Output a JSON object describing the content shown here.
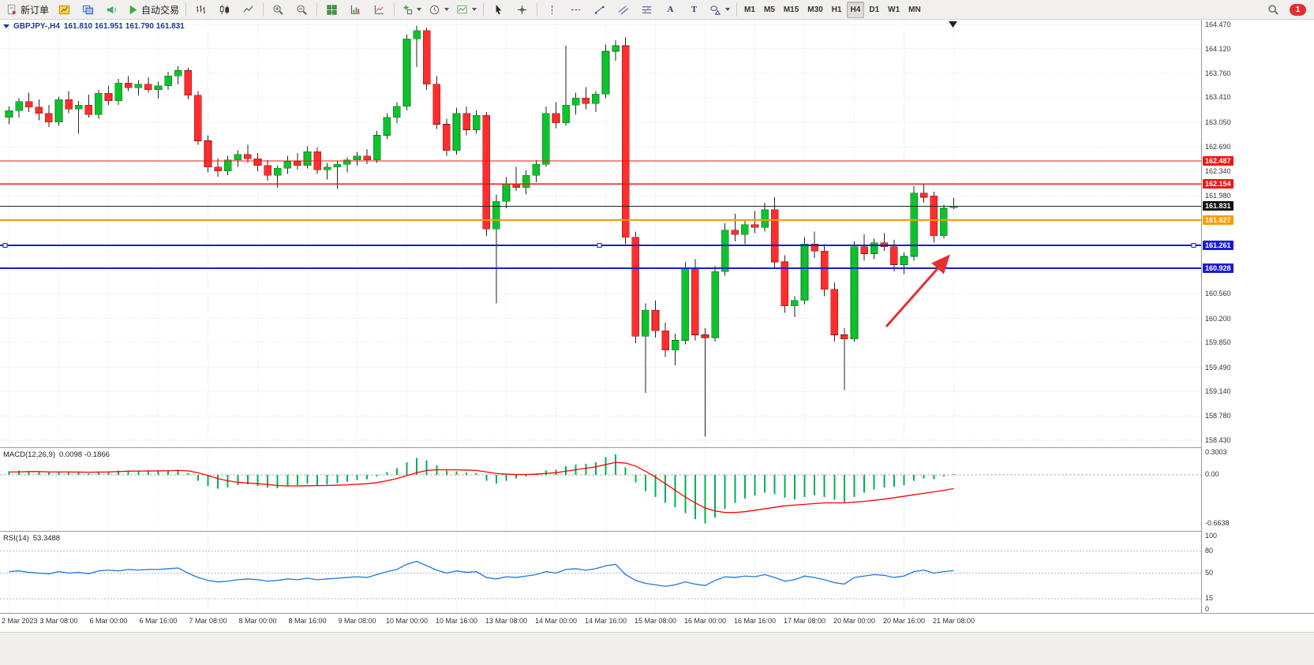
{
  "toolbar": {
    "notification_badge": "1",
    "active_timeframe": "H4",
    "timeframes": [
      "M1",
      "M5",
      "M15",
      "M30",
      "H1",
      "H4",
      "D1",
      "W1",
      "MN"
    ],
    "groups": [
      {
        "items": [
          {
            "name": "new-order",
            "icon": "new-order",
            "label": "新订单"
          },
          {
            "name": "charts",
            "icon": "charts"
          },
          {
            "name": "profiles",
            "icon": "profiles"
          },
          {
            "name": "alerts",
            "icon": "alerts"
          },
          {
            "name": "auto-trading",
            "icon": "autotrade",
            "label": "自动交易"
          }
        ]
      },
      {
        "items": [
          {
            "name": "bar-chart",
            "icon": "bars"
          },
          {
            "name": "candlestick-chart",
            "icon": "candles"
          },
          {
            "name": "line-chart",
            "icon": "linechart"
          }
        ]
      },
      {
        "items": [
          {
            "name": "zoom-in",
            "icon": "zoom-in"
          },
          {
            "name": "zoom-out",
            "icon": "zoom-out"
          }
        ]
      },
      {
        "items": [
          {
            "name": "tile-windows",
            "icon": "tile"
          },
          {
            "name": "arrange-charts",
            "icon": "chartaxes"
          },
          {
            "name": "auto-scroll",
            "icon": "chartaxes2"
          }
        ]
      },
      {
        "items": [
          {
            "name": "new-chart",
            "icon": "pluschart",
            "dropdown": true
          },
          {
            "name": "period-selector",
            "icon": "clock",
            "dropdown": true
          },
          {
            "name": "template-selector",
            "icon": "template",
            "dropdown": true
          }
        ]
      },
      {
        "items": [
          {
            "name": "cursor-tool",
            "icon": "cursor"
          },
          {
            "name": "crosshair-tool",
            "icon": "crosshair"
          }
        ]
      },
      {
        "items": [
          {
            "name": "vertical-line-tool",
            "icon": "vline"
          },
          {
            "name": "horizontal-line-tool",
            "icon": "hline"
          },
          {
            "name": "trendline-tool",
            "icon": "trend"
          },
          {
            "name": "channel-tool",
            "icon": "channel"
          },
          {
            "name": "fibonacci-tool",
            "icon": "fibo"
          },
          {
            "name": "text-tool",
            "icon": "glyph",
            "glyph": "A"
          },
          {
            "name": "label-tool",
            "icon": "glyph",
            "glyph": "T"
          },
          {
            "name": "shapes-tool",
            "icon": "shapes",
            "dropdown": true
          }
        ]
      }
    ]
  },
  "chart": {
    "symbol_title": "GBPJPY-,H4",
    "ohlc_text": "161.810 161.951 161.790 161.831"
  },
  "indicators": {
    "macd": {
      "label": "MACD(12,26,9)",
      "values": "0.0098 -0.1866",
      "axis_labels": [
        "0.3003",
        "0.00",
        "-0.6638"
      ]
    },
    "rsi": {
      "label": "RSI(14)",
      "values": "53.3488",
      "axis_labels": [
        "100",
        "80",
        "50",
        "15",
        "0"
      ],
      "levels": [
        80,
        50,
        15
      ]
    }
  },
  "chart_data": [
    {
      "type": "candlestick",
      "title": "GBPJPY- H4",
      "y_range": [
        158.43,
        164.47
      ],
      "up_color": "#0ec22e",
      "down_color": "#ff2e2e",
      "y_ticks": [
        "164.470",
        "164.120",
        "163.760",
        "163.410",
        "163.050",
        "162.690",
        "162.340",
        "161.980",
        "160.560",
        "160.200",
        "159.850",
        "159.490",
        "159.140",
        "158.780",
        "158.430"
      ],
      "x_labels": [
        "2 Mar 2023",
        "3 Mar 08:00",
        "6 Mar 00:00",
        "6 Mar 16:00",
        "7 Mar 08:00",
        "8 Mar 00:00",
        "8 Mar 16:00",
        "9 Mar 08:00",
        "10 Mar 00:00",
        "10 Mar 16:00",
        "13 Mar 08:00",
        "14 Mar 00:00",
        "14 Mar 16:00",
        "15 Mar 08:00",
        "16 Mar 00:00",
        "16 Mar 16:00",
        "17 Mar 08:00",
        "20 Mar 00:00",
        "20 Mar 16:00",
        "21 Mar 08:00"
      ],
      "levels": [
        {
          "price": 162.487,
          "label": "162.487",
          "color": "#f21515",
          "width": 1.4,
          "selected": false
        },
        {
          "price": 162.154,
          "label": "162.154",
          "color": "#f21515",
          "width": 1.4,
          "selected": false
        },
        {
          "price": 161.627,
          "label": "161.627",
          "color": "#ff9a00",
          "width": 2,
          "selected": false
        },
        {
          "price": 161.261,
          "label": "161.261",
          "color": "#1b1bd6",
          "width": 2,
          "selected": true
        },
        {
          "price": 160.928,
          "label": "160.928",
          "color": "#1b1bd6",
          "width": 2,
          "selected": false
        }
      ],
      "current_price": 161.831,
      "current_price_label": "161.831",
      "candles": [
        [
          163.12,
          163.28,
          163.02,
          163.22
        ],
        [
          163.22,
          163.4,
          163.12,
          163.35
        ],
        [
          163.35,
          163.48,
          163.2,
          163.27
        ],
        [
          163.27,
          163.38,
          163.08,
          163.18
        ],
        [
          163.18,
          163.3,
          162.98,
          163.05
        ],
        [
          163.05,
          163.42,
          163.0,
          163.38
        ],
        [
          163.38,
          163.5,
          163.18,
          163.24
        ],
        [
          163.24,
          163.36,
          162.88,
          163.3
        ],
        [
          163.3,
          163.45,
          163.12,
          163.16
        ],
        [
          163.16,
          163.52,
          163.1,
          163.47
        ],
        [
          163.47,
          163.58,
          163.3,
          163.36
        ],
        [
          163.36,
          163.68,
          163.3,
          163.62
        ],
        [
          163.62,
          163.72,
          163.5,
          163.55
        ],
        [
          163.55,
          163.66,
          163.44,
          163.6
        ],
        [
          163.6,
          163.7,
          163.48,
          163.52
        ],
        [
          163.52,
          163.64,
          163.4,
          163.58
        ],
        [
          163.58,
          163.78,
          163.52,
          163.72
        ],
        [
          163.72,
          163.86,
          163.6,
          163.8
        ],
        [
          163.8,
          163.84,
          163.38,
          163.44
        ],
        [
          163.44,
          163.5,
          162.72,
          162.78
        ],
        [
          162.78,
          162.86,
          162.32,
          162.4
        ],
        [
          162.4,
          162.52,
          162.26,
          162.34
        ],
        [
          162.34,
          162.56,
          162.28,
          162.5
        ],
        [
          162.5,
          162.64,
          162.4,
          162.58
        ],
        [
          162.58,
          162.72,
          162.46,
          162.52
        ],
        [
          162.52,
          162.6,
          162.34,
          162.42
        ],
        [
          162.42,
          162.5,
          162.2,
          162.28
        ],
        [
          162.28,
          162.42,
          162.1,
          162.38
        ],
        [
          162.38,
          162.56,
          162.3,
          162.48
        ],
        [
          162.48,
          162.6,
          162.36,
          162.42
        ],
        [
          162.42,
          162.7,
          162.38,
          162.62
        ],
        [
          162.62,
          162.68,
          162.3,
          162.36
        ],
        [
          162.36,
          162.46,
          162.22,
          162.4
        ],
        [
          162.4,
          162.48,
          162.08,
          162.44
        ],
        [
          162.44,
          162.54,
          162.32,
          162.5
        ],
        [
          162.5,
          162.62,
          162.42,
          162.56
        ],
        [
          162.56,
          162.66,
          162.44,
          162.5
        ],
        [
          162.5,
          162.92,
          162.46,
          162.86
        ],
        [
          162.86,
          163.18,
          162.8,
          163.12
        ],
        [
          163.12,
          163.34,
          163.04,
          163.28
        ],
        [
          163.28,
          164.32,
          163.22,
          164.26
        ],
        [
          164.26,
          164.45,
          163.85,
          164.38
        ],
        [
          164.38,
          164.42,
          163.52,
          163.6
        ],
        [
          163.6,
          163.72,
          162.95,
          163.02
        ],
        [
          163.02,
          163.1,
          162.56,
          162.64
        ],
        [
          162.64,
          163.26,
          162.58,
          163.18
        ],
        [
          163.18,
          163.28,
          162.86,
          162.94
        ],
        [
          162.94,
          163.22,
          162.88,
          163.15
        ],
        [
          163.15,
          163.2,
          161.4,
          161.5
        ],
        [
          161.5,
          162.0,
          160.42,
          161.9
        ],
        [
          161.9,
          162.25,
          161.8,
          162.15
        ],
        [
          162.15,
          162.4,
          162.05,
          162.1
        ],
        [
          162.1,
          162.35,
          162.0,
          162.28
        ],
        [
          162.28,
          162.5,
          162.18,
          162.44
        ],
        [
          162.44,
          163.28,
          162.4,
          163.18
        ],
        [
          163.18,
          163.34,
          162.96,
          163.04
        ],
        [
          163.04,
          164.16,
          163.0,
          163.3
        ],
        [
          163.3,
          163.48,
          163.16,
          163.4
        ],
        [
          163.4,
          163.56,
          163.24,
          163.32
        ],
        [
          163.32,
          163.5,
          163.2,
          163.46
        ],
        [
          163.46,
          164.18,
          163.4,
          164.08
        ],
        [
          164.08,
          164.24,
          163.94,
          164.16
        ],
        [
          164.16,
          164.28,
          161.28,
          161.38
        ],
        [
          161.38,
          161.46,
          159.84,
          159.94
        ],
        [
          159.94,
          160.42,
          159.12,
          160.32
        ],
        [
          160.32,
          160.46,
          159.92,
          160.02
        ],
        [
          160.02,
          160.14,
          159.64,
          159.74
        ],
        [
          159.74,
          159.98,
          159.52,
          159.88
        ],
        [
          159.88,
          161.02,
          159.82,
          160.92
        ],
        [
          160.92,
          161.06,
          159.88,
          159.96
        ],
        [
          159.96,
          160.06,
          158.48,
          159.92
        ],
        [
          159.92,
          160.96,
          159.86,
          160.88
        ],
        [
          160.88,
          161.58,
          160.82,
          161.48
        ],
        [
          161.48,
          161.72,
          161.32,
          161.42
        ],
        [
          161.42,
          161.62,
          161.28,
          161.56
        ],
        [
          161.56,
          161.76,
          161.44,
          161.52
        ],
        [
          161.52,
          161.88,
          161.46,
          161.78
        ],
        [
          161.78,
          161.96,
          160.92,
          161.02
        ],
        [
          161.02,
          161.12,
          160.28,
          160.38
        ],
        [
          160.38,
          160.52,
          160.22,
          160.46
        ],
        [
          160.46,
          161.38,
          160.4,
          161.28
        ],
        [
          161.28,
          161.46,
          161.08,
          161.18
        ],
        [
          161.18,
          161.28,
          160.52,
          160.62
        ],
        [
          160.62,
          160.72,
          159.86,
          159.96
        ],
        [
          159.96,
          160.06,
          159.16,
          159.9
        ],
        [
          159.9,
          161.32,
          159.86,
          161.24
        ],
        [
          161.24,
          161.42,
          161.04,
          161.14
        ],
        [
          161.14,
          161.36,
          161.06,
          161.3
        ],
        [
          161.3,
          161.44,
          161.18,
          161.24
        ],
        [
          161.24,
          161.34,
          160.88,
          160.98
        ],
        [
          160.98,
          161.16,
          160.84,
          161.1
        ],
        [
          161.1,
          162.12,
          161.04,
          162.02
        ],
        [
          162.02,
          162.16,
          161.88,
          161.96
        ],
        [
          161.98,
          162.04,
          161.3,
          161.4
        ],
        [
          161.4,
          161.85,
          161.36,
          161.8
        ],
        [
          161.81,
          161.951,
          161.79,
          161.831
        ]
      ]
    },
    {
      "type": "bar",
      "name": "MACD(12,26,9)",
      "y_range": [
        -0.6638,
        0.3003
      ],
      "histogram_color": "#00b050",
      "signal_color": "#ff0000",
      "current_values": [
        0.0098,
        -0.1866
      ],
      "histogram": [
        0.05,
        0.06,
        0.05,
        0.04,
        0.03,
        0.04,
        0.03,
        0.03,
        0.02,
        0.04,
        0.05,
        0.06,
        0.06,
        0.05,
        0.05,
        0.05,
        0.06,
        0.07,
        0.02,
        -0.08,
        -0.15,
        -0.19,
        -0.17,
        -0.14,
        -0.13,
        -0.15,
        -0.17,
        -0.18,
        -0.15,
        -0.14,
        -0.12,
        -0.14,
        -0.13,
        -0.11,
        -0.09,
        -0.07,
        -0.06,
        -0.02,
        0.04,
        0.09,
        0.17,
        0.23,
        0.2,
        0.13,
        0.06,
        0.05,
        0.03,
        0.02,
        -0.08,
        -0.12,
        -0.08,
        -0.05,
        -0.02,
        0.02,
        0.06,
        0.07,
        0.12,
        0.14,
        0.15,
        0.17,
        0.24,
        0.28,
        0.1,
        -0.1,
        -0.22,
        -0.3,
        -0.38,
        -0.44,
        -0.52,
        -0.6,
        -0.66,
        -0.58,
        -0.46,
        -0.38,
        -0.32,
        -0.28,
        -0.24,
        -0.26,
        -0.31,
        -0.33,
        -0.3,
        -0.28,
        -0.3,
        -0.34,
        -0.37,
        -0.3,
        -0.24,
        -0.2,
        -0.17,
        -0.16,
        -0.14,
        -0.08,
        -0.05,
        -0.06,
        -0.02,
        0.0098
      ],
      "signal_line": [
        0.04,
        0.04,
        0.045,
        0.045,
        0.04,
        0.04,
        0.04,
        0.038,
        0.036,
        0.038,
        0.04,
        0.045,
        0.05,
        0.052,
        0.053,
        0.054,
        0.056,
        0.06,
        0.055,
        0.03,
        -0.01,
        -0.05,
        -0.08,
        -0.1,
        -0.11,
        -0.12,
        -0.13,
        -0.145,
        -0.15,
        -0.15,
        -0.148,
        -0.146,
        -0.144,
        -0.14,
        -0.135,
        -0.128,
        -0.12,
        -0.105,
        -0.08,
        -0.05,
        -0.01,
        0.03,
        0.06,
        0.07,
        0.07,
        0.068,
        0.065,
        0.06,
        0.04,
        0.02,
        0.01,
        0.005,
        0.005,
        0.01,
        0.02,
        0.03,
        0.05,
        0.07,
        0.09,
        0.11,
        0.14,
        0.17,
        0.16,
        0.12,
        0.05,
        -0.03,
        -0.12,
        -0.21,
        -0.3,
        -0.38,
        -0.45,
        -0.49,
        -0.51,
        -0.51,
        -0.5,
        -0.48,
        -0.46,
        -0.44,
        -0.42,
        -0.41,
        -0.4,
        -0.39,
        -0.38,
        -0.38,
        -0.38,
        -0.37,
        -0.36,
        -0.345,
        -0.33,
        -0.31,
        -0.29,
        -0.27,
        -0.25,
        -0.23,
        -0.21,
        -0.1866
      ]
    },
    {
      "type": "line",
      "name": "RSI(14)",
      "y_range": [
        0,
        100
      ],
      "color": "#1e78dc",
      "levels": [
        80,
        50,
        15
      ],
      "current_value": 53.3488,
      "values": [
        52,
        53,
        51,
        50,
        49,
        52,
        50,
        51,
        49,
        53,
        54,
        53,
        55,
        54,
        55,
        55,
        56,
        57,
        50,
        44,
        40,
        38,
        39,
        41,
        42,
        41,
        39,
        40,
        42,
        41,
        43,
        41,
        42,
        43,
        44,
        45,
        44,
        48,
        52,
        55,
        62,
        66,
        60,
        54,
        50,
        53,
        51,
        52,
        44,
        42,
        45,
        44,
        46,
        48,
        52,
        50,
        55,
        56,
        54,
        56,
        60,
        62,
        48,
        40,
        36,
        34,
        32,
        34,
        38,
        35,
        33,
        40,
        45,
        44,
        46,
        45,
        48,
        44,
        39,
        41,
        46,
        44,
        41,
        37,
        35,
        44,
        46,
        48,
        47,
        44,
        46,
        52,
        54,
        50,
        52,
        53.35
      ]
    }
  ]
}
